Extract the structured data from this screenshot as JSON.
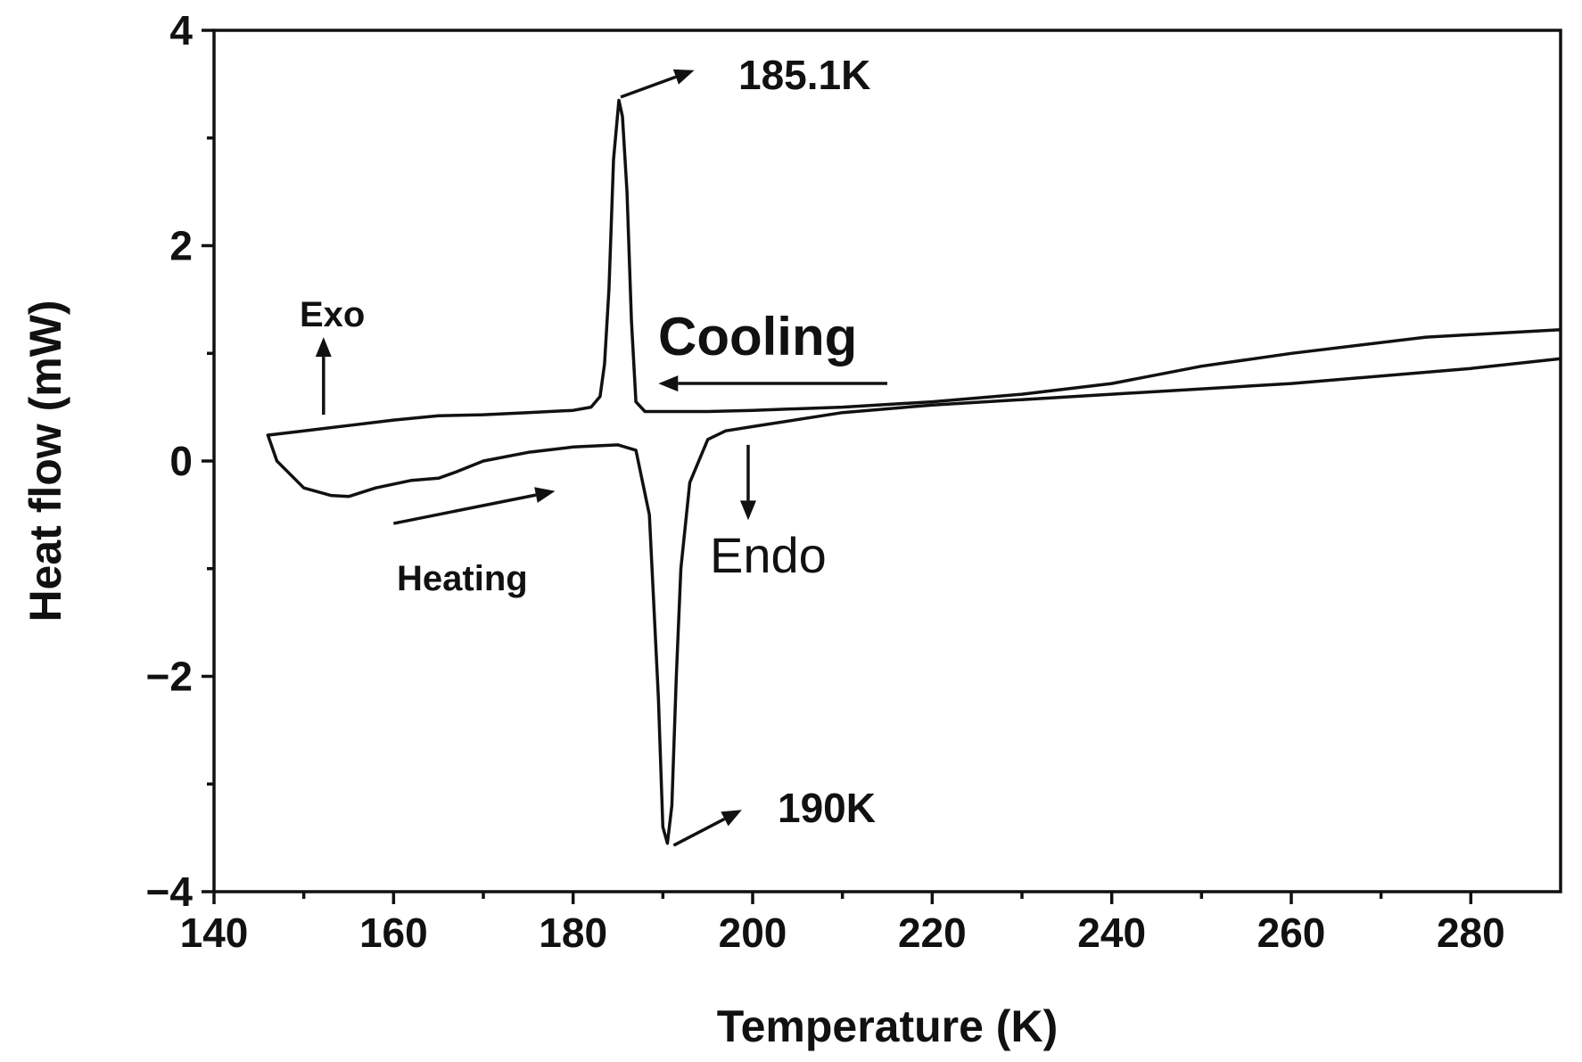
{
  "chart_data": {
    "type": "line",
    "title": "",
    "xlabel": "Temperature (K)",
    "ylabel": "Heat flow (mW)",
    "xlim": [
      140,
      290
    ],
    "ylim": [
      -4,
      4
    ],
    "x_ticks": [
      140,
      160,
      180,
      200,
      220,
      240,
      260,
      280
    ],
    "y_ticks": [
      -4,
      -2,
      0,
      2,
      4
    ],
    "y_tick_labels": [
      "−4",
      "−2",
      "0",
      "2",
      "4"
    ],
    "grid": false,
    "legend": "none",
    "series": [
      {
        "x": [
          290,
          275,
          260,
          250,
          240,
          230,
          220,
          210,
          200,
          195,
          190,
          188,
          187,
          186.5,
          186,
          185.5,
          185.1,
          184.5,
          184,
          183.5,
          183,
          182,
          180,
          175,
          170,
          165,
          160,
          155,
          150,
          146
        ],
        "y": [
          1.22,
          1.15,
          1.0,
          0.88,
          0.72,
          0.62,
          0.55,
          0.5,
          0.47,
          0.46,
          0.46,
          0.46,
          0.55,
          1.3,
          2.5,
          3.2,
          3.35,
          2.8,
          1.6,
          0.9,
          0.6,
          0.5,
          0.47,
          0.45,
          0.43,
          0.42,
          0.38,
          0.33,
          0.28,
          0.24
        ]
      },
      {
        "x": [
          146,
          147,
          150,
          153,
          155,
          158,
          162,
          165,
          167,
          170,
          175,
          180,
          185,
          187,
          188.5,
          189.5,
          190,
          190.5,
          191,
          191.5,
          192,
          193,
          195,
          197,
          200,
          210,
          220,
          240,
          260,
          280,
          290
        ],
        "y": [
          0.24,
          0.0,
          -0.25,
          -0.32,
          -0.33,
          -0.25,
          -0.18,
          -0.16,
          -0.1,
          0.0,
          0.08,
          0.13,
          0.15,
          0.1,
          -0.5,
          -2.2,
          -3.4,
          -3.55,
          -3.2,
          -2.0,
          -1.0,
          -0.2,
          0.2,
          0.28,
          0.32,
          0.45,
          0.52,
          0.62,
          0.72,
          0.86,
          0.95
        ]
      }
    ],
    "annotations": {
      "peak_exo": "185.1K",
      "peak_endo": "190K",
      "cooling": "Cooling",
      "heating": "Heating",
      "exo": "Exo",
      "endo": "Endo"
    }
  }
}
